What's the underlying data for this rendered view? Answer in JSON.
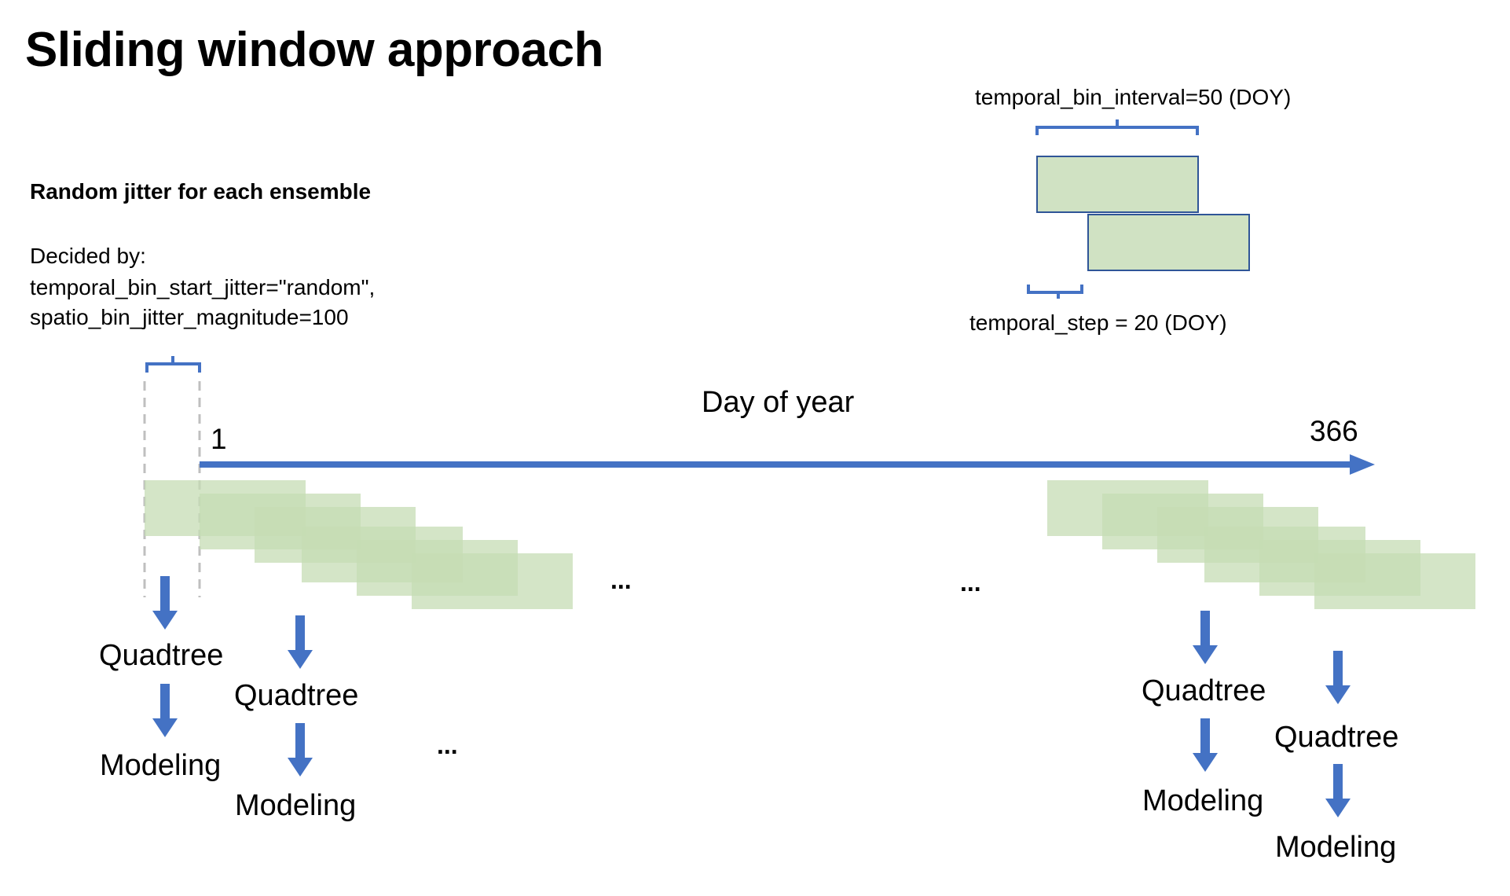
{
  "title": "Sliding window approach",
  "jitter": {
    "heading": "Random jitter for each ensemble",
    "decided_by": "Decided by:",
    "param1": "temporal_bin_start_jitter=\"random\",",
    "param2": "spatio_bin_jitter_magnitude=100"
  },
  "legend": {
    "interval_label": "temporal_bin_interval=50 (DOY)",
    "step_label": "temporal_step = 20 (DOY)"
  },
  "axis": {
    "label": "Day of year",
    "start": "1",
    "end": "366"
  },
  "ellipsis": "...",
  "pipeline": {
    "step1": "Quadtree",
    "step2": "Modeling"
  },
  "colors": {
    "axis_blue": "#4472C4",
    "window_green": "#C5DCB4",
    "box_fill": "#D0E2C3",
    "box_border": "#2F5597",
    "bracket_blue": "#4472C4",
    "dashed_gray": "#BFBFBF"
  }
}
